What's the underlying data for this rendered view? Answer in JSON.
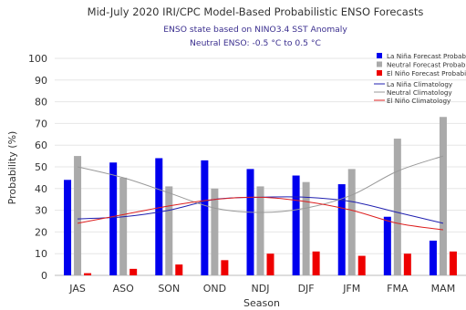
{
  "chart_data": {
    "type": "bar",
    "title": "Mid-July 2020 IRI/CPC Model-Based Probabilistic ENSO Forecasts",
    "subtitle": "ENSO state based on NINO3.4 SST Anomaly",
    "subtitle2": "Neutral ENSO: -0.5 °C to 0.5 °C",
    "xlabel": "Season",
    "ylabel": "Probability (%)",
    "ylim": [
      0,
      100
    ],
    "yticks": [
      0,
      10,
      20,
      30,
      40,
      50,
      60,
      70,
      80,
      90,
      100
    ],
    "grid": true,
    "legend_position": "top-right",
    "categories": [
      "JAS",
      "ASO",
      "SON",
      "OND",
      "NDJ",
      "DJF",
      "JFM",
      "FMA",
      "MAM"
    ],
    "series": [
      {
        "name": "La Niña Forecast Probability",
        "kind": "bar",
        "color": "#0000ee",
        "values": [
          44,
          52,
          54,
          53,
          49,
          46,
          42,
          27,
          16
        ]
      },
      {
        "name": "Neutral Forecast Probability",
        "kind": "bar",
        "color": "#aaaaaa",
        "values": [
          55,
          45,
          41,
          40,
          41,
          43,
          49,
          63,
          73
        ]
      },
      {
        "name": "El Niño Forecast Probability",
        "kind": "bar",
        "color": "#ee0000",
        "values": [
          1,
          3,
          5,
          7,
          10,
          11,
          9,
          10,
          11
        ]
      },
      {
        "name": "La Niña Climatology",
        "kind": "line",
        "color": "#2020b0",
        "values": [
          26,
          27,
          30,
          35,
          36,
          36,
          34,
          29,
          24
        ]
      },
      {
        "name": "Neutral Climatology",
        "kind": "line",
        "color": "#999999",
        "values": [
          50,
          45,
          38,
          31,
          29,
          31,
          37,
          48,
          55
        ]
      },
      {
        "name": "El Niño Climatology",
        "kind": "line",
        "color": "#dd2020",
        "values": [
          24,
          28,
          32,
          35,
          36,
          34,
          30,
          24,
          21
        ]
      }
    ]
  }
}
